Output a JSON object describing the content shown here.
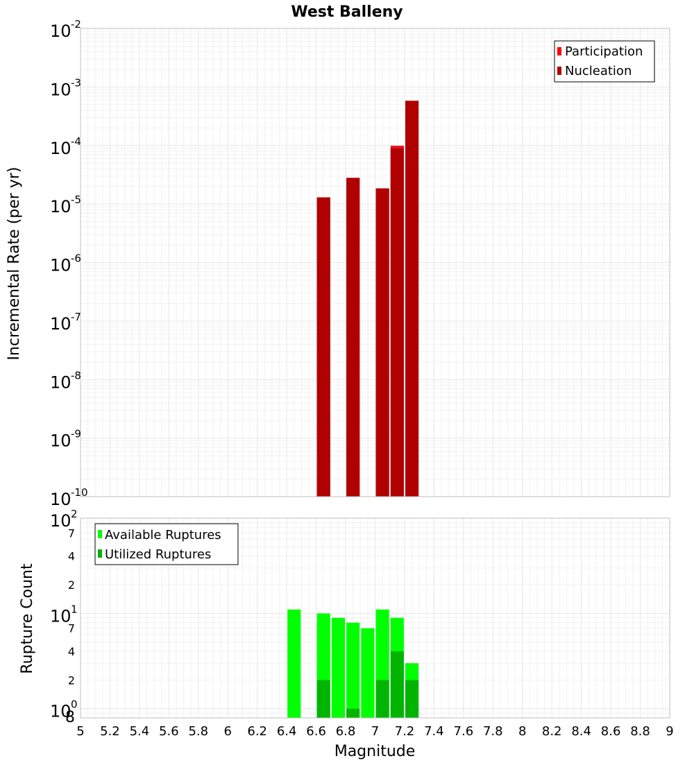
{
  "title": "West Balleny",
  "xlabel": "Magnitude",
  "x_ticks": [
    "5",
    "5.2",
    "5.4",
    "5.6",
    "5.8",
    "6",
    "6.2",
    "6.4",
    "6.6",
    "6.8",
    "7",
    "7.2",
    "7.4",
    "7.6",
    "7.8",
    "8",
    "8.2",
    "8.4",
    "8.6",
    "8.8",
    "9"
  ],
  "chart_data": [
    {
      "type": "bar",
      "ylabel": "Incremental Rate (per yr)",
      "yscale": "log",
      "xlim": [
        5,
        9
      ],
      "ylim": [
        1e-10,
        0.01
      ],
      "y_major_ticks": [
        {
          "base": "10",
          "exp": "-10"
        },
        {
          "base": "10",
          "exp": "-9"
        },
        {
          "base": "10",
          "exp": "-8"
        },
        {
          "base": "10",
          "exp": "-7"
        },
        {
          "base": "10",
          "exp": "-6"
        },
        {
          "base": "10",
          "exp": "-5"
        },
        {
          "base": "10",
          "exp": "-4"
        },
        {
          "base": "10",
          "exp": "-3"
        },
        {
          "base": "10",
          "exp": "-2"
        }
      ],
      "legend": {
        "placement": "top-right",
        "entries": [
          {
            "label": "Participation",
            "color": "#ff0000"
          },
          {
            "label": "Nucleation",
            "color": "#b00000"
          }
        ]
      },
      "bar_width": 0.09,
      "series": [
        {
          "name": "Participation",
          "color": "#e8101a",
          "x": [
            6.65,
            6.85,
            7.05,
            7.15,
            7.25
          ],
          "values": [
            1.3e-05,
            2.8e-05,
            1.85e-05,
            9.9e-05,
            0.00058
          ]
        },
        {
          "name": "Nucleation",
          "color": "#b00000",
          "x": [
            6.65,
            6.85,
            7.05,
            7.15,
            7.25
          ],
          "values": [
            1.3e-05,
            2.8e-05,
            1.85e-05,
            8.9e-05,
            0.00058
          ]
        }
      ]
    },
    {
      "type": "bar",
      "ylabel": "Rupture Count",
      "yscale": "log",
      "xlim": [
        5,
        9
      ],
      "ylim": [
        0.8,
        100
      ],
      "y_major_ticks": [
        {
          "base": "10",
          "exp": "0"
        },
        {
          "base": "10",
          "exp": "1"
        },
        {
          "base": "10",
          "exp": "2"
        }
      ],
      "y_minor_ticks": [
        {
          "value": 0.8,
          "label": "8"
        },
        {
          "value": 2,
          "label": "2"
        },
        {
          "value": 4,
          "label": "4"
        },
        {
          "value": 7,
          "label": "7"
        },
        {
          "value": 20,
          "label": "2"
        },
        {
          "value": 40,
          "label": "4"
        },
        {
          "value": 70,
          "label": "7"
        }
      ],
      "legend": {
        "placement": "top-left",
        "entries": [
          {
            "label": "Available Ruptures",
            "color": "#00ff00"
          },
          {
            "label": "Utilized Ruptures",
            "color": "#00b400"
          }
        ]
      },
      "bar_width": 0.09,
      "series": [
        {
          "name": "Available Ruptures",
          "color": "#00ff00",
          "x": [
            6.45,
            6.65,
            6.75,
            6.85,
            6.95,
            7.05,
            7.15,
            7.25
          ],
          "values": [
            11,
            10,
            9,
            8,
            7,
            11,
            9,
            3
          ]
        },
        {
          "name": "Utilized Ruptures",
          "color": "#00b400",
          "x": [
            6.65,
            6.85,
            7.05,
            7.15,
            7.25
          ],
          "values": [
            2,
            1,
            2,
            4,
            2
          ]
        }
      ]
    }
  ]
}
